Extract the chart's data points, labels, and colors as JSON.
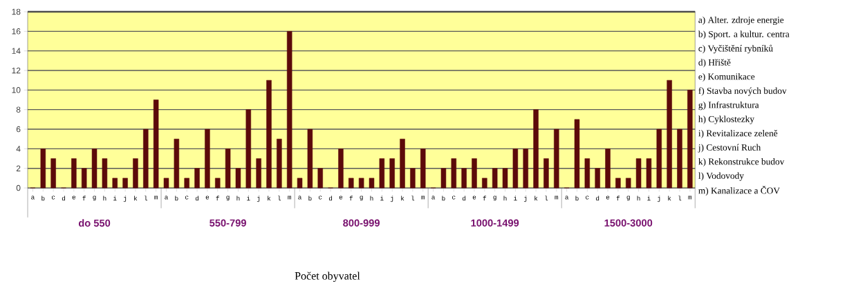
{
  "chart_data": {
    "type": "bar",
    "categories": [
      "a",
      "b",
      "c",
      "d",
      "e",
      "f",
      "g",
      "h",
      "i",
      "j",
      "k",
      "l",
      "m",
      "a",
      "b",
      "c",
      "d",
      "e",
      "f",
      "g",
      "h",
      "i",
      "j",
      "k",
      "l",
      "m",
      "a",
      "b",
      "c",
      "d",
      "e",
      "f",
      "g",
      "h",
      "i",
      "j",
      "k",
      "l",
      "m",
      "a",
      "b",
      "c",
      "d",
      "e",
      "f",
      "g",
      "h",
      "i",
      "j",
      "k",
      "l",
      "m",
      "a",
      "b",
      "c",
      "d",
      "e",
      "f",
      "g",
      "h",
      "i",
      "j",
      "k",
      "l",
      "m"
    ],
    "values": [
      0,
      4,
      3,
      0,
      3,
      2,
      4,
      3,
      1,
      1,
      3,
      6,
      9,
      1,
      5,
      1,
      2,
      6,
      1,
      4,
      2,
      8,
      3,
      11,
      5,
      16,
      1,
      6,
      2,
      0,
      4,
      1,
      1,
      1,
      3,
      3,
      5,
      2,
      4,
      0,
      2,
      3,
      2,
      3,
      1,
      2,
      2,
      4,
      4,
      8,
      3,
      6,
      0,
      7,
      3,
      2,
      4,
      1,
      1,
      3,
      3,
      6,
      11,
      6,
      10
    ],
    "color": "#5c0a0a",
    "ylim": [
      0,
      18
    ],
    "yticks": [
      0,
      2,
      4,
      6,
      8,
      10,
      12,
      14,
      16,
      18
    ],
    "grid": "y",
    "annotations": [
      "do 550",
      "550-799",
      "800-999",
      "1000-1499",
      "1500-3000",
      "a) Alter. zdroje energie",
      "b) Sport. a kultur. centra",
      "c) Vyčištění rybníků",
      "d) Hřiště",
      "e) Komunikace",
      "f) Stavba nových budov",
      "g) Infrastruktura",
      "h) Cyklostezky",
      "i) Revitalizace zeleně",
      "j) Cestovní Ruch",
      "k) Rekonstrukce budov",
      "l) Vodovody",
      "m) Kanalizace a ČOV",
      "Počet obyvatel"
    ]
  }
}
